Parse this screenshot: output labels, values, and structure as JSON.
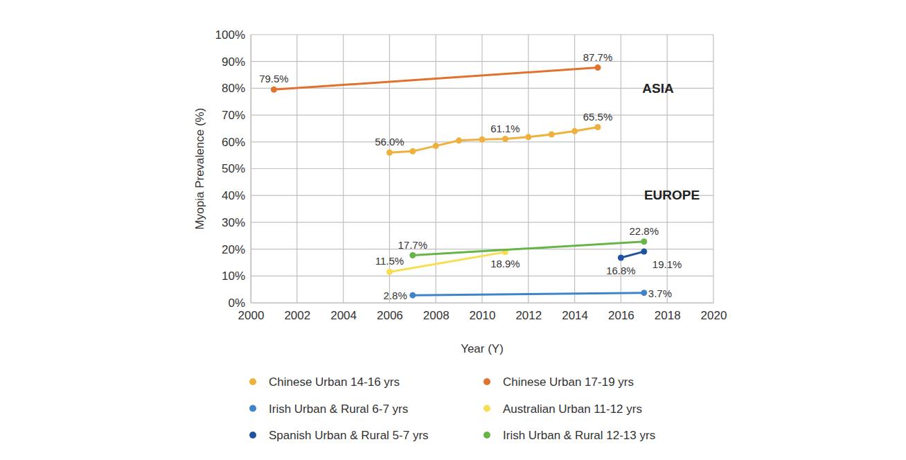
{
  "chart_data": {
    "type": "line",
    "x_label": "Year (Y)",
    "y_label": "Myopia Prevalence (%)",
    "annotations": [
      "ASIA",
      "EUROPE"
    ],
    "xlim": [
      2000,
      2020
    ],
    "xticks": [
      2000,
      2002,
      2004,
      2006,
      2008,
      2010,
      2012,
      2014,
      2016,
      2018,
      2020
    ],
    "ylim": [
      0,
      100
    ],
    "yticks": [
      {
        "value": 0,
        "label": "0%"
      },
      {
        "value": 10,
        "label": "10%"
      },
      {
        "value": 20,
        "label": "20%"
      },
      {
        "value": 30,
        "label": "30%"
      },
      {
        "value": 40,
        "label": "40%"
      },
      {
        "value": 50,
        "label": "50%"
      },
      {
        "value": 60,
        "label": "60%"
      },
      {
        "value": 70,
        "label": "70%"
      },
      {
        "value": 80,
        "label": "80%"
      },
      {
        "value": 90,
        "label": "90%"
      },
      {
        "value": 100,
        "label": "100%"
      }
    ],
    "grid": true,
    "legend": "bottom",
    "data_labels": true,
    "marker": "circle",
    "series": [
      {
        "name": "Chinese Urban 14-16 yrs",
        "color": "#efb13e",
        "x": [
          2006,
          2007,
          2008,
          2009,
          2010,
          2011,
          2012,
          2013,
          2014,
          2015
        ],
        "values": [
          56.0,
          56.5,
          58.5,
          60.5,
          60.9,
          61.1,
          61.8,
          62.8,
          64.0,
          65.5
        ],
        "value_labels": [
          "56.0%",
          null,
          null,
          null,
          null,
          "61.1%",
          null,
          null,
          null,
          "65.5%"
        ]
      },
      {
        "name": "Chinese Urban 17-19 yrs",
        "color": "#e2712e",
        "x": [
          2001,
          2015
        ],
        "values": [
          79.5,
          87.7
        ],
        "value_labels": [
          "79.5%",
          "87.7%"
        ]
      },
      {
        "name": "Irish Urban & Rural 6-7 yrs",
        "color": "#3f84c8",
        "x": [
          2007,
          2017
        ],
        "values": [
          2.8,
          3.7
        ],
        "value_labels": [
          "2.8%",
          "3.7%"
        ]
      },
      {
        "name": "Australian Urban 11-12 yrs",
        "color": "#f8dd50",
        "x": [
          2006,
          2011
        ],
        "values": [
          11.5,
          18.9
        ],
        "value_labels": [
          "11.5%",
          "18.9%"
        ]
      },
      {
        "name": "Spanish Urban & Rural 5-7 yrs",
        "color": "#1f53a0",
        "x": [
          2016,
          2017
        ],
        "values": [
          16.8,
          19.1
        ],
        "value_labels": [
          "16.8%",
          "19.1%"
        ]
      },
      {
        "name": "Irish Urban & Rural 12-13 yrs",
        "color": "#67b546",
        "x": [
          2007,
          2017
        ],
        "values": [
          17.7,
          22.8
        ],
        "value_labels": [
          "17.7%",
          "22.8%"
        ]
      }
    ]
  }
}
